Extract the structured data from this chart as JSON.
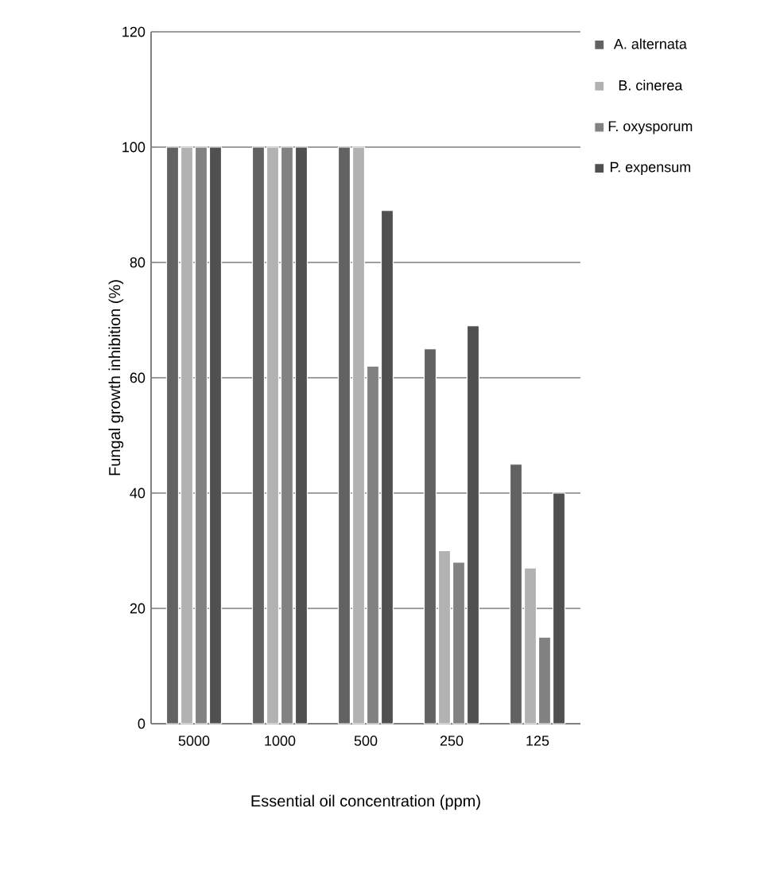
{
  "chart_data": {
    "type": "bar",
    "xlabel": "Essential oil concentration (ppm)",
    "ylabel": "Fungal growth inhibition (%)",
    "categories": [
      "5000",
      "1000",
      "500",
      "250",
      "125"
    ],
    "series": [
      {
        "name": "A. alternata",
        "color": "#626262",
        "values": [
          100,
          100,
          100,
          65,
          45
        ]
      },
      {
        "name": "B. cinerea",
        "color": "#b2b2b2",
        "values": [
          100,
          100,
          100,
          30,
          27
        ]
      },
      {
        "name": "F. oxysporum",
        "color": "#828282",
        "values": [
          100,
          100,
          62,
          28,
          15
        ]
      },
      {
        "name": "P. expensum",
        "color": "#505050",
        "values": [
          100,
          100,
          89,
          69,
          40
        ]
      }
    ],
    "ylim": [
      0,
      120
    ],
    "yticks": [
      0,
      20,
      40,
      60,
      80,
      100,
      120
    ],
    "grid": "y",
    "legend": "right"
  }
}
